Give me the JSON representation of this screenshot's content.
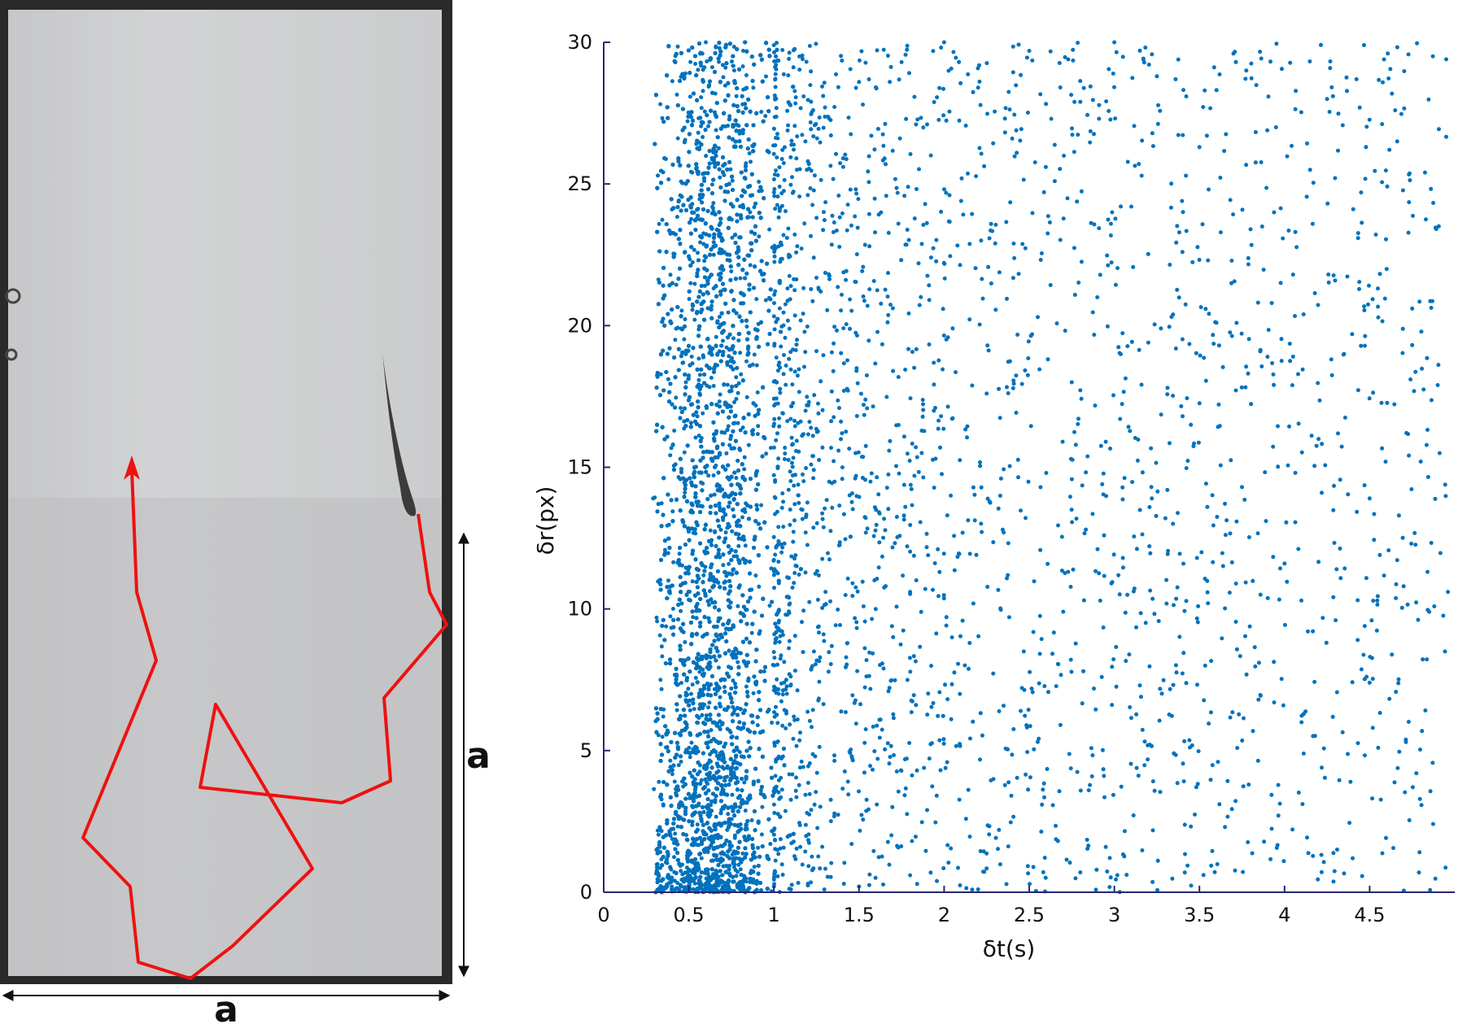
{
  "left_panel": {
    "side_label": "a",
    "bottom_label": "a",
    "trajectory_color": "#ee1111"
  },
  "chart_data": {
    "type": "scatter",
    "xlabel": "δt(s)",
    "ylabel": "δr(px)",
    "xlim": [
      0,
      5
    ],
    "ylim": [
      0,
      30
    ],
    "x_ticks": [
      "0",
      "0.5",
      "1",
      "1.5",
      "2",
      "2.5",
      "3",
      "3.5",
      "4",
      "4.5"
    ],
    "y_ticks": [
      "0",
      "5",
      "10",
      "15",
      "20",
      "25",
      "30"
    ],
    "marker_color": "#0072bd",
    "axis_color": "#262673",
    "grid": false,
    "legend": "none",
    "series": [
      {
        "points": [
          [
            0.29,
            13.9
          ],
          [
            0.31,
            1.5
          ],
          [
            0.35,
            6.2
          ],
          [
            0.38,
            11.0
          ],
          [
            0.42,
            19.5
          ],
          [
            0.45,
            24.6
          ],
          [
            0.48,
            28.9
          ],
          [
            0.52,
            25.4
          ],
          [
            0.55,
            16.8
          ],
          [
            0.58,
            29.6
          ],
          [
            0.6,
            30.0
          ],
          [
            0.62,
            21.7
          ],
          [
            0.66,
            26.9
          ],
          [
            0.7,
            29.2
          ],
          [
            0.74,
            22.5
          ],
          [
            0.78,
            28.1
          ],
          [
            0.82,
            29.7
          ],
          [
            0.86,
            24.0
          ],
          [
            0.9,
            18.6
          ],
          [
            0.95,
            27.4
          ],
          [
            1.0,
            29.9
          ],
          [
            1.05,
            26.2
          ],
          [
            1.1,
            21.4
          ],
          [
            1.15,
            29.5
          ],
          [
            1.2,
            25.8
          ],
          [
            1.25,
            19.1
          ],
          [
            1.3,
            27.7
          ],
          [
            1.35,
            23.3
          ],
          [
            1.4,
            16.2
          ],
          [
            1.45,
            24.8
          ],
          [
            1.5,
            28.6
          ],
          [
            1.55,
            20.7
          ],
          [
            1.6,
            13.5
          ],
          [
            1.65,
            25.9
          ],
          [
            1.7,
            18.4
          ],
          [
            1.75,
            29.3
          ],
          [
            1.8,
            10.6
          ],
          [
            1.85,
            22.2
          ],
          [
            1.9,
            27.1
          ],
          [
            1.95,
            15.3
          ],
          [
            2.0,
            30.0
          ],
          [
            2.05,
            19.9
          ],
          [
            2.1,
            24.4
          ],
          [
            2.15,
            8.8
          ],
          [
            2.2,
            28.4
          ],
          [
            2.25,
            17.6
          ],
          [
            2.3,
            22.9
          ],
          [
            2.35,
            12.7
          ],
          [
            2.4,
            26.6
          ],
          [
            2.45,
            6.4
          ],
          [
            2.5,
            29.7
          ],
          [
            2.55,
            20.3
          ],
          [
            2.6,
            14.8
          ],
          [
            2.65,
            25.1
          ],
          [
            2.7,
            9.9
          ],
          [
            2.75,
            18.0
          ],
          [
            2.8,
            27.9
          ],
          [
            2.85,
            3.6
          ],
          [
            2.9,
            21.0
          ],
          [
            2.95,
            15.9
          ],
          [
            3.0,
            30.0
          ],
          [
            3.05,
            11.8
          ],
          [
            3.1,
            24.2
          ],
          [
            3.15,
            7.3
          ],
          [
            3.2,
            19.4
          ],
          [
            3.25,
            28.8
          ],
          [
            3.3,
            13.2
          ],
          [
            3.35,
            4.9
          ],
          [
            3.4,
            22.6
          ],
          [
            3.45,
            16.5
          ],
          [
            3.5,
            26.3
          ],
          [
            3.55,
            10.2
          ],
          [
            3.6,
            20.1
          ],
          [
            3.65,
            2.3
          ],
          [
            3.7,
            29.6
          ],
          [
            3.75,
            14.3
          ],
          [
            3.8,
            23.4
          ],
          [
            3.85,
            8.1
          ],
          [
            3.9,
            18.9
          ],
          [
            3.95,
            27.0
          ],
          [
            4.0,
            11.6
          ],
          [
            4.05,
            21.8
          ],
          [
            4.1,
            6.0
          ],
          [
            4.15,
            25.5
          ],
          [
            4.2,
            16.0
          ],
          [
            4.25,
            28.0
          ],
          [
            4.3,
            9.6
          ],
          [
            4.35,
            19.0
          ],
          [
            4.4,
            1.2
          ],
          [
            4.45,
            24.7
          ],
          [
            4.5,
            13.9
          ],
          [
            4.55,
            5.1
          ],
          [
            4.6,
            22.0
          ],
          [
            4.65,
            27.6
          ],
          [
            4.7,
            10.8
          ],
          [
            4.75,
            20.6
          ],
          [
            4.8,
            15.2
          ],
          [
            4.85,
            9.9
          ],
          [
            4.9,
            17.9
          ],
          [
            4.95,
            29.4
          ],
          [
            4.96,
            10.6
          ],
          [
            1.2,
            0.3
          ],
          [
            1.5,
            0.2
          ],
          [
            1.8,
            0.6
          ],
          [
            2.2,
            0.1
          ],
          [
            2.8,
            0.7
          ],
          [
            2.95,
            1.6
          ],
          [
            0.33,
            0.1
          ],
          [
            0.4,
            0.2
          ],
          [
            0.5,
            0.1
          ],
          [
            0.6,
            0.3
          ],
          [
            0.7,
            0.2
          ],
          [
            0.8,
            0.1
          ],
          [
            0.9,
            0.4
          ],
          [
            1.0,
            0.2
          ],
          [
            1.1,
            0.1
          ]
        ]
      }
    ]
  }
}
